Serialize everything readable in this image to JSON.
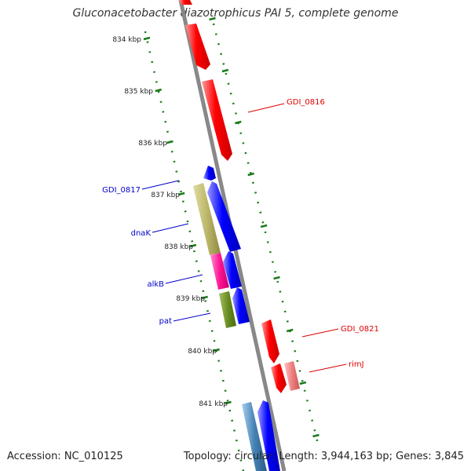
{
  "title": "Gluconacetobacter diazotrophicus PAI 5, complete genome",
  "footer": {
    "accession": "Accession: NC_010125",
    "summary": "Topology: circular; Length: 3,944,163 bp; Genes: 3,845"
  },
  "colors": {
    "forward_strand": "#ff0000",
    "reverse_strand": "#0000ff",
    "tick": "#1a7a1a",
    "backbone": "#888888"
  },
  "ticks": [
    "834 kbp",
    "835 kbp",
    "836 kbp",
    "837 kbp",
    "838 kbp",
    "839 kbp",
    "840 kbp",
    "841 kbp"
  ],
  "labels": [
    {
      "text": "GDI_0816",
      "strand": "forward"
    },
    {
      "text": "GDI_0817",
      "strand": "reverse"
    },
    {
      "text": "dnaK",
      "strand": "reverse"
    },
    {
      "text": "alkB",
      "strand": "reverse"
    },
    {
      "text": "pat",
      "strand": "reverse"
    },
    {
      "text": "GDI_0821",
      "strand": "forward"
    },
    {
      "text": "rimJ",
      "strand": "forward"
    }
  ]
}
